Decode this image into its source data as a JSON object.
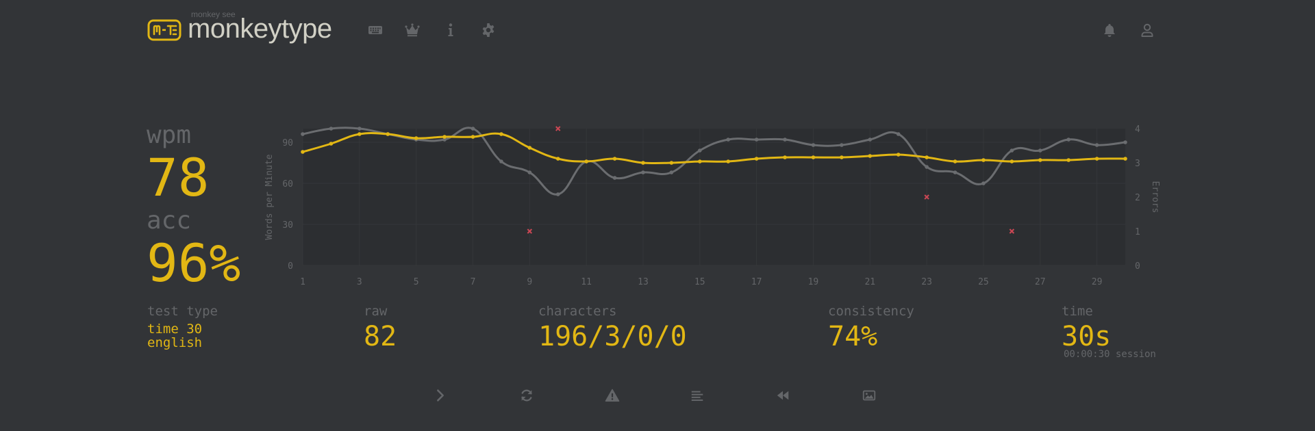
{
  "header": {
    "logo_sub": "monkey see",
    "logo_text": "monkeytype",
    "logo_icon": "keyboard-logo-icon",
    "nav": [
      {
        "name": "keyboard-icon"
      },
      {
        "name": "crown-icon"
      },
      {
        "name": "info-icon"
      },
      {
        "name": "gear-icon"
      }
    ],
    "right": [
      {
        "name": "bell-icon"
      },
      {
        "name": "user-icon"
      }
    ]
  },
  "result": {
    "wpm_label": "wpm",
    "wpm_value": "78",
    "acc_label": "acc",
    "acc_value": "96%"
  },
  "stats": {
    "test_type_label": "test type",
    "test_type_line1": "time 30",
    "test_type_line2": "english",
    "raw_label": "raw",
    "raw_value": "82",
    "characters_label": "characters",
    "characters_value": "196/3/0/0",
    "consistency_label": "consistency",
    "consistency_value": "74%",
    "time_label": "time",
    "time_value": "30s",
    "session_text": "00:00:30 session"
  },
  "actions": [
    {
      "name": "next-test-icon"
    },
    {
      "name": "restart-icon"
    },
    {
      "name": "warning-icon"
    },
    {
      "name": "word-history-icon"
    },
    {
      "name": "replay-icon"
    },
    {
      "name": "screenshot-icon"
    }
  ],
  "colors": {
    "background": "#323437",
    "plot_background": "#2c2e31",
    "main": "#e2b714",
    "sub": "#646669",
    "text": "#d1d0c5",
    "raw_line": "#6b6d70",
    "error": "#ca4754"
  },
  "chart_data": {
    "type": "line",
    "ylabel": "Words per Minute",
    "y2label": "Errors",
    "ylim": [
      0,
      100
    ],
    "y2lim": [
      0,
      4
    ],
    "y_ticks": [
      0,
      30,
      60,
      90
    ],
    "y2_ticks": [
      0,
      1,
      2,
      3,
      4
    ],
    "x_ticks": [
      1,
      3,
      5,
      7,
      9,
      11,
      13,
      15,
      17,
      19,
      21,
      23,
      25,
      27,
      29
    ],
    "x": [
      1,
      2,
      3,
      4,
      5,
      6,
      7,
      8,
      9,
      10,
      11,
      12,
      13,
      14,
      15,
      16,
      17,
      18,
      19,
      20,
      21,
      22,
      23,
      24,
      25,
      26,
      27,
      28,
      29,
      30
    ],
    "series": [
      {
        "name": "wpm",
        "color": "#e2b714",
        "values": [
          83,
          89,
          96,
          96,
          93,
          94,
          94,
          96,
          86,
          78,
          76,
          78,
          75,
          75,
          76,
          76,
          78,
          79,
          79,
          79,
          80,
          81,
          79,
          76,
          77,
          76,
          77,
          77,
          78,
          78
        ]
      },
      {
        "name": "raw",
        "color": "#6b6d70",
        "values": [
          96,
          100,
          100,
          96,
          92,
          92,
          100,
          76,
          68,
          52,
          76,
          64,
          68,
          68,
          84,
          92,
          92,
          92,
          88,
          88,
          92,
          96,
          72,
          68,
          60,
          84,
          84,
          92,
          88,
          90
        ]
      },
      {
        "name": "errors",
        "color": "#ca4754",
        "points": [
          {
            "x": 9,
            "y": 1
          },
          {
            "x": 10,
            "y": 4
          },
          {
            "x": 23,
            "y": 2
          },
          {
            "x": 26,
            "y": 1
          }
        ]
      }
    ]
  }
}
